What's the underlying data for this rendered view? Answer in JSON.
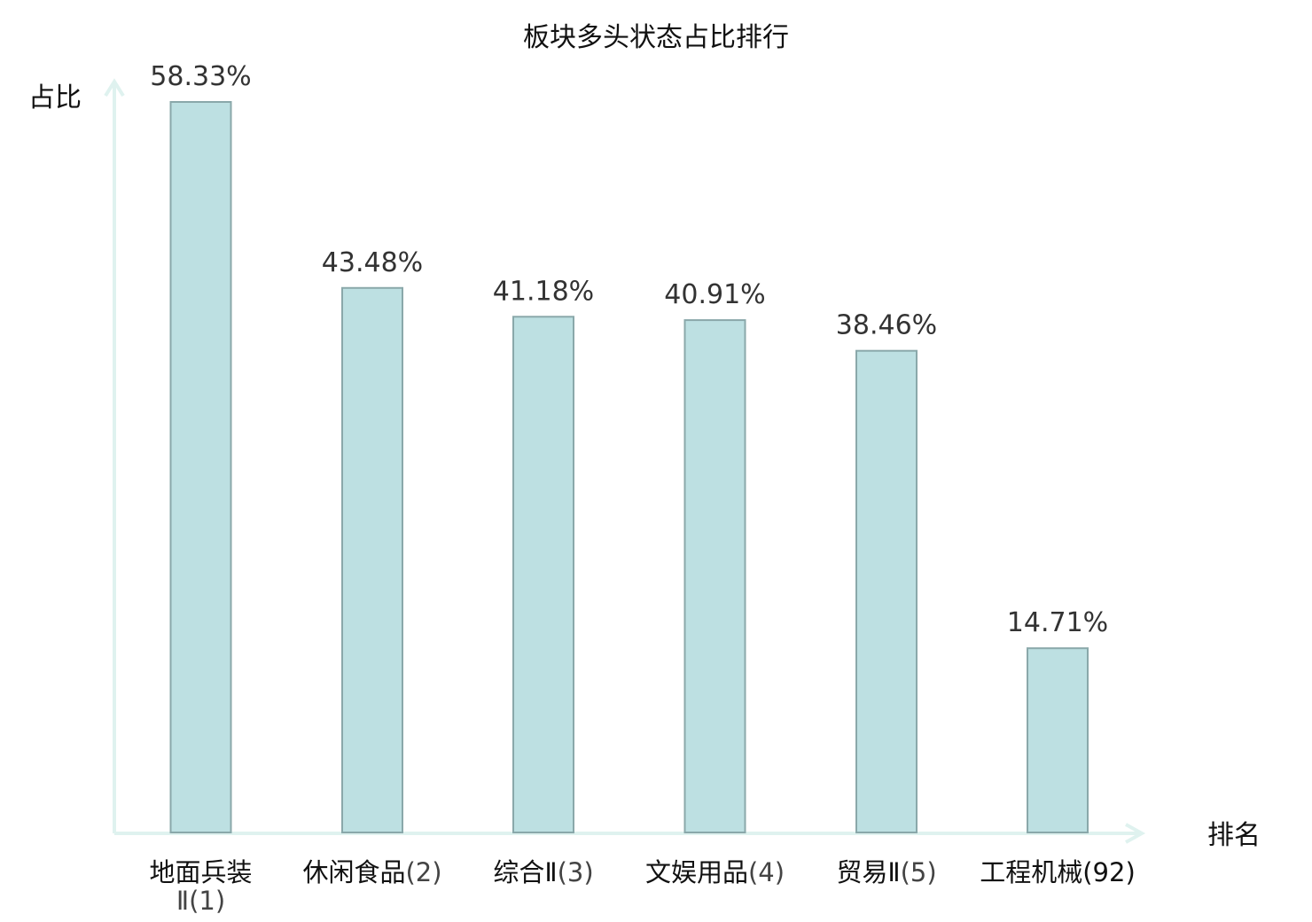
{
  "chart_data": {
    "type": "bar",
    "title": "板块多头状态占比排行",
    "ylabel": "占比",
    "xlabel": "排名",
    "categories": [
      "地面兵装Ⅱ(1)",
      "休闲食品(2)",
      "综合Ⅱ(3)",
      "文娱用品(4)",
      "贸易Ⅱ(5)",
      "工程机械(92)"
    ],
    "category_names": [
      "地面兵装Ⅱ",
      "休闲食品",
      "综合Ⅱ",
      "文娱用品",
      "贸易Ⅱ",
      "工程机械"
    ],
    "ranks": [
      "(1)",
      "(2)",
      "(3)",
      "(4)",
      "(5)",
      "(92)"
    ],
    "values": [
      58.33,
      43.48,
      41.18,
      40.91,
      38.46,
      14.71
    ],
    "value_labels": [
      "58.33%",
      "43.48%",
      "41.18%",
      "40.91%",
      "38.46%",
      "14.71%"
    ],
    "highlight_index": 5,
    "ylim": [
      0,
      58.33
    ],
    "grid": false,
    "colors": {
      "bar_fill": "#bde0e2",
      "bar_stroke": "#8aa8aa",
      "axis": "#dff2ef",
      "highlight_text": "#e01010"
    }
  }
}
